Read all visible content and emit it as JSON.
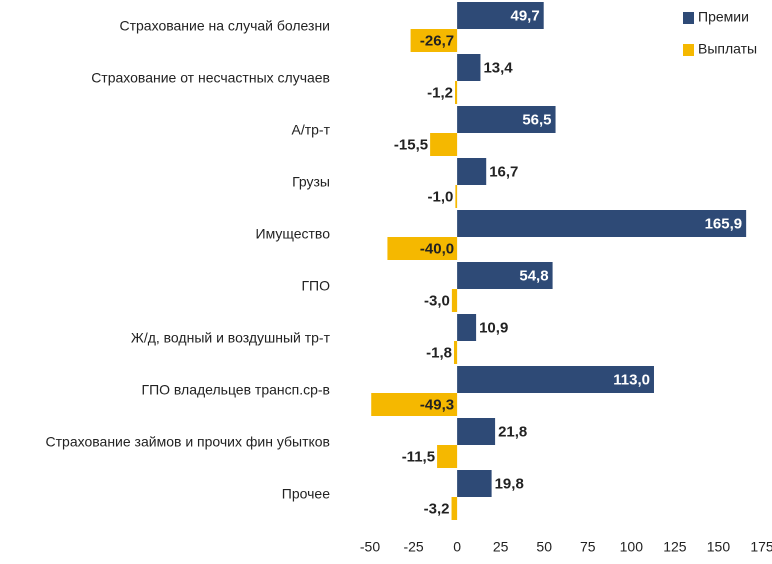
{
  "chart_data": {
    "type": "bar",
    "orientation": "horizontal",
    "categories": [
      "Страхование на случай болезни",
      "Страхование от несчастных случаев",
      "А/тр-т",
      "Грузы",
      "Имущество",
      "ГПО",
      "Ж/д, водный и воздушный тр-т",
      "ГПО владельцев трансп.ср-в",
      "Страхование займов и прочих фин убытков",
      "Прочее"
    ],
    "series": [
      {
        "name": "Премии",
        "color": "#2e4a76",
        "values": [
          49.7,
          13.4,
          56.5,
          16.7,
          165.9,
          54.8,
          10.9,
          113.0,
          21.8,
          19.8
        ],
        "value_labels": [
          "49,7",
          "13,4",
          "56,5",
          "16,7",
          "165,9",
          "54,8",
          "10,9",
          "113,0",
          "21,8",
          "19,8"
        ]
      },
      {
        "name": "Выплаты",
        "color": "#f5b800",
        "values": [
          -26.7,
          -1.2,
          -15.5,
          -1.0,
          -40.0,
          -3.0,
          -1.8,
          -49.3,
          -11.5,
          -3.2
        ],
        "value_labels": [
          "-26,7",
          "-1,2",
          "-15,5",
          "-1,0",
          "-40,0",
          "-3,0",
          "-1,8",
          "-49,3",
          "-11,5",
          "-3,2"
        ]
      }
    ],
    "xlim": [
      -50,
      175
    ],
    "xticks": [
      -50,
      -25,
      0,
      25,
      50,
      75,
      100,
      125,
      150,
      175
    ],
    "legend": "top-right"
  }
}
